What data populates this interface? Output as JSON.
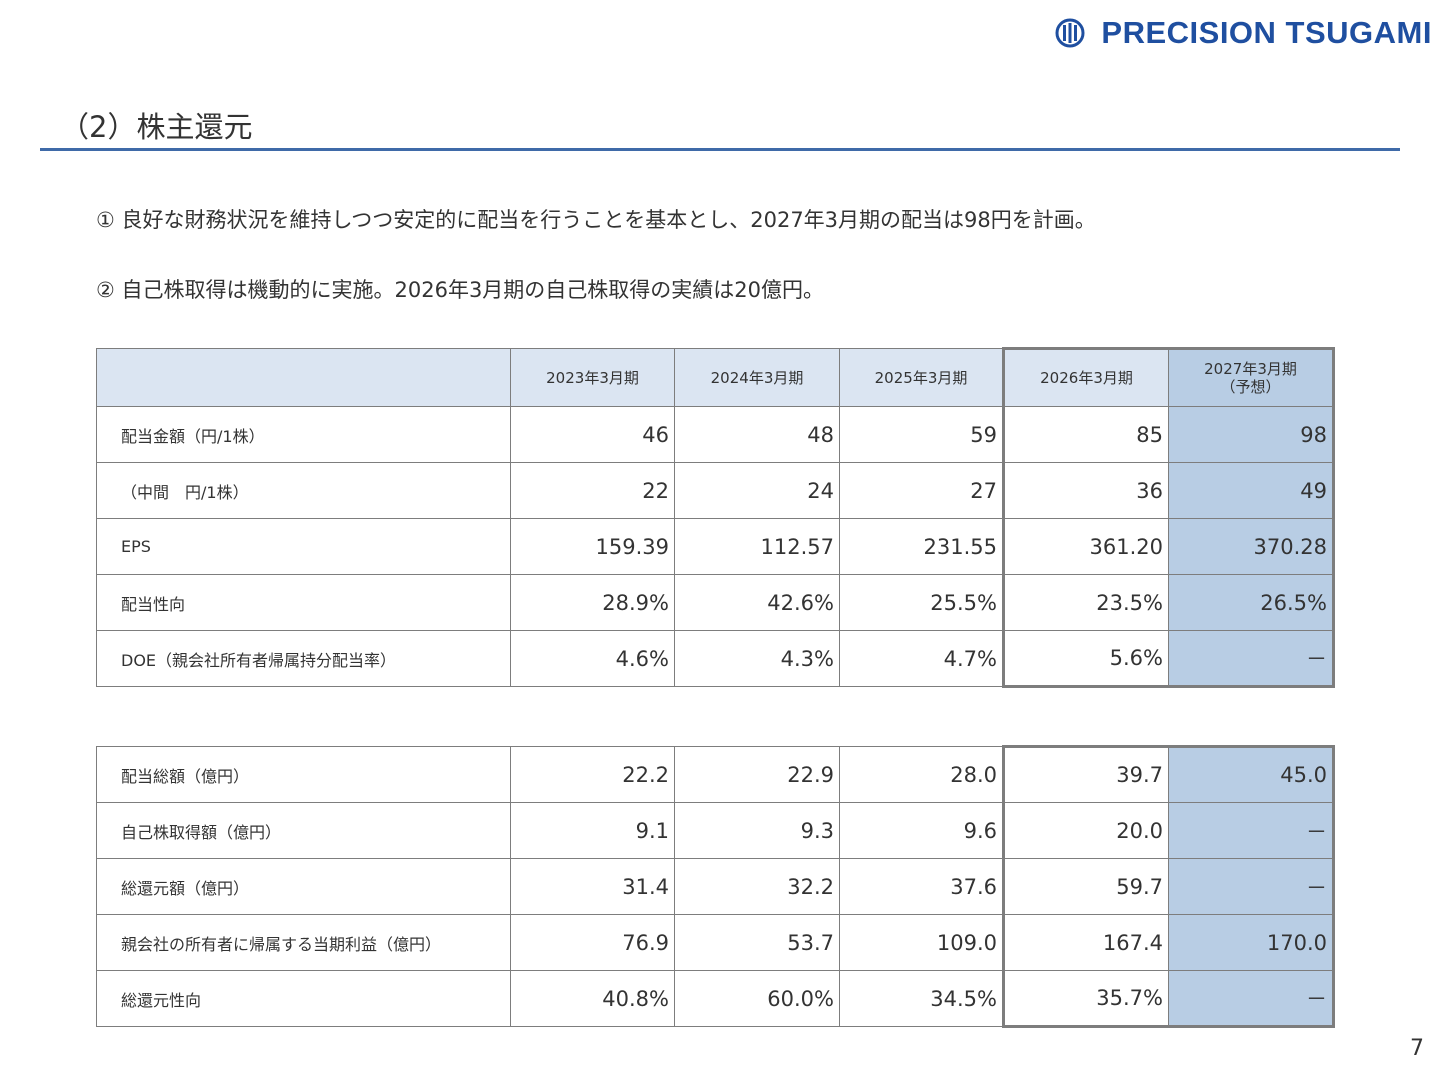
{
  "brand": {
    "name": "PRECISION TSUGAMI",
    "color": "#1f4fa0"
  },
  "title": "（2）株主還元",
  "points": [
    "① 良好な財務状況を維持しつつ安定的に配当を行うことを基本とし、2027年3月期の配当は98円を計画。",
    "② 自己株取得は機動的に実施。2026年3月期の自己株取得の実績は20億円。"
  ],
  "table1": {
    "headers": [
      "2023年3月期",
      "2024年3月期",
      "2025年3月期",
      "2026年3月期",
      "2027年3月期",
      "（予想）"
    ],
    "rows": [
      {
        "label": "配当金額（円/1株）",
        "values": [
          "46",
          "48",
          "59",
          "85",
          "98"
        ]
      },
      {
        "label": "（中間　円/1株）",
        "values": [
          "22",
          "24",
          "27",
          "36",
          "49"
        ]
      },
      {
        "label": "EPS",
        "values": [
          "159.39",
          "112.57",
          "231.55",
          "361.20",
          "370.28"
        ]
      },
      {
        "label": "配当性向",
        "values": [
          "28.9%",
          "42.6%",
          "25.5%",
          "23.5%",
          "26.5%"
        ]
      },
      {
        "label": "DOE（親会社所有者帰属持分配当率）",
        "values": [
          "4.6%",
          "4.3%",
          "4.7%",
          "5.6%",
          "－"
        ]
      }
    ]
  },
  "table2": {
    "rows": [
      {
        "label": "配当総額（億円）",
        "values": [
          "22.2",
          "22.9",
          "28.0",
          "39.7",
          "45.0"
        ]
      },
      {
        "label": "自己株取得額（億円）",
        "values": [
          "9.1",
          "9.3",
          "9.6",
          "20.0",
          "－"
        ]
      },
      {
        "label": "総還元額（億円）",
        "values": [
          "31.4",
          "32.2",
          "37.6",
          "59.7",
          "－"
        ]
      },
      {
        "label": "親会社の所有者に帰属する当期利益（億円）",
        "values": [
          "76.9",
          "53.7",
          "109.0",
          "167.4",
          "170.0"
        ]
      },
      {
        "label": "総還元性向",
        "values": [
          "40.8%",
          "60.0%",
          "34.5%",
          "35.7%",
          "－"
        ]
      }
    ]
  },
  "page_number": "7",
  "colors": {
    "rule": "#3f6aa8",
    "header_bg": "#dbe5f2",
    "forecast_bg": "#b8cde4"
  }
}
